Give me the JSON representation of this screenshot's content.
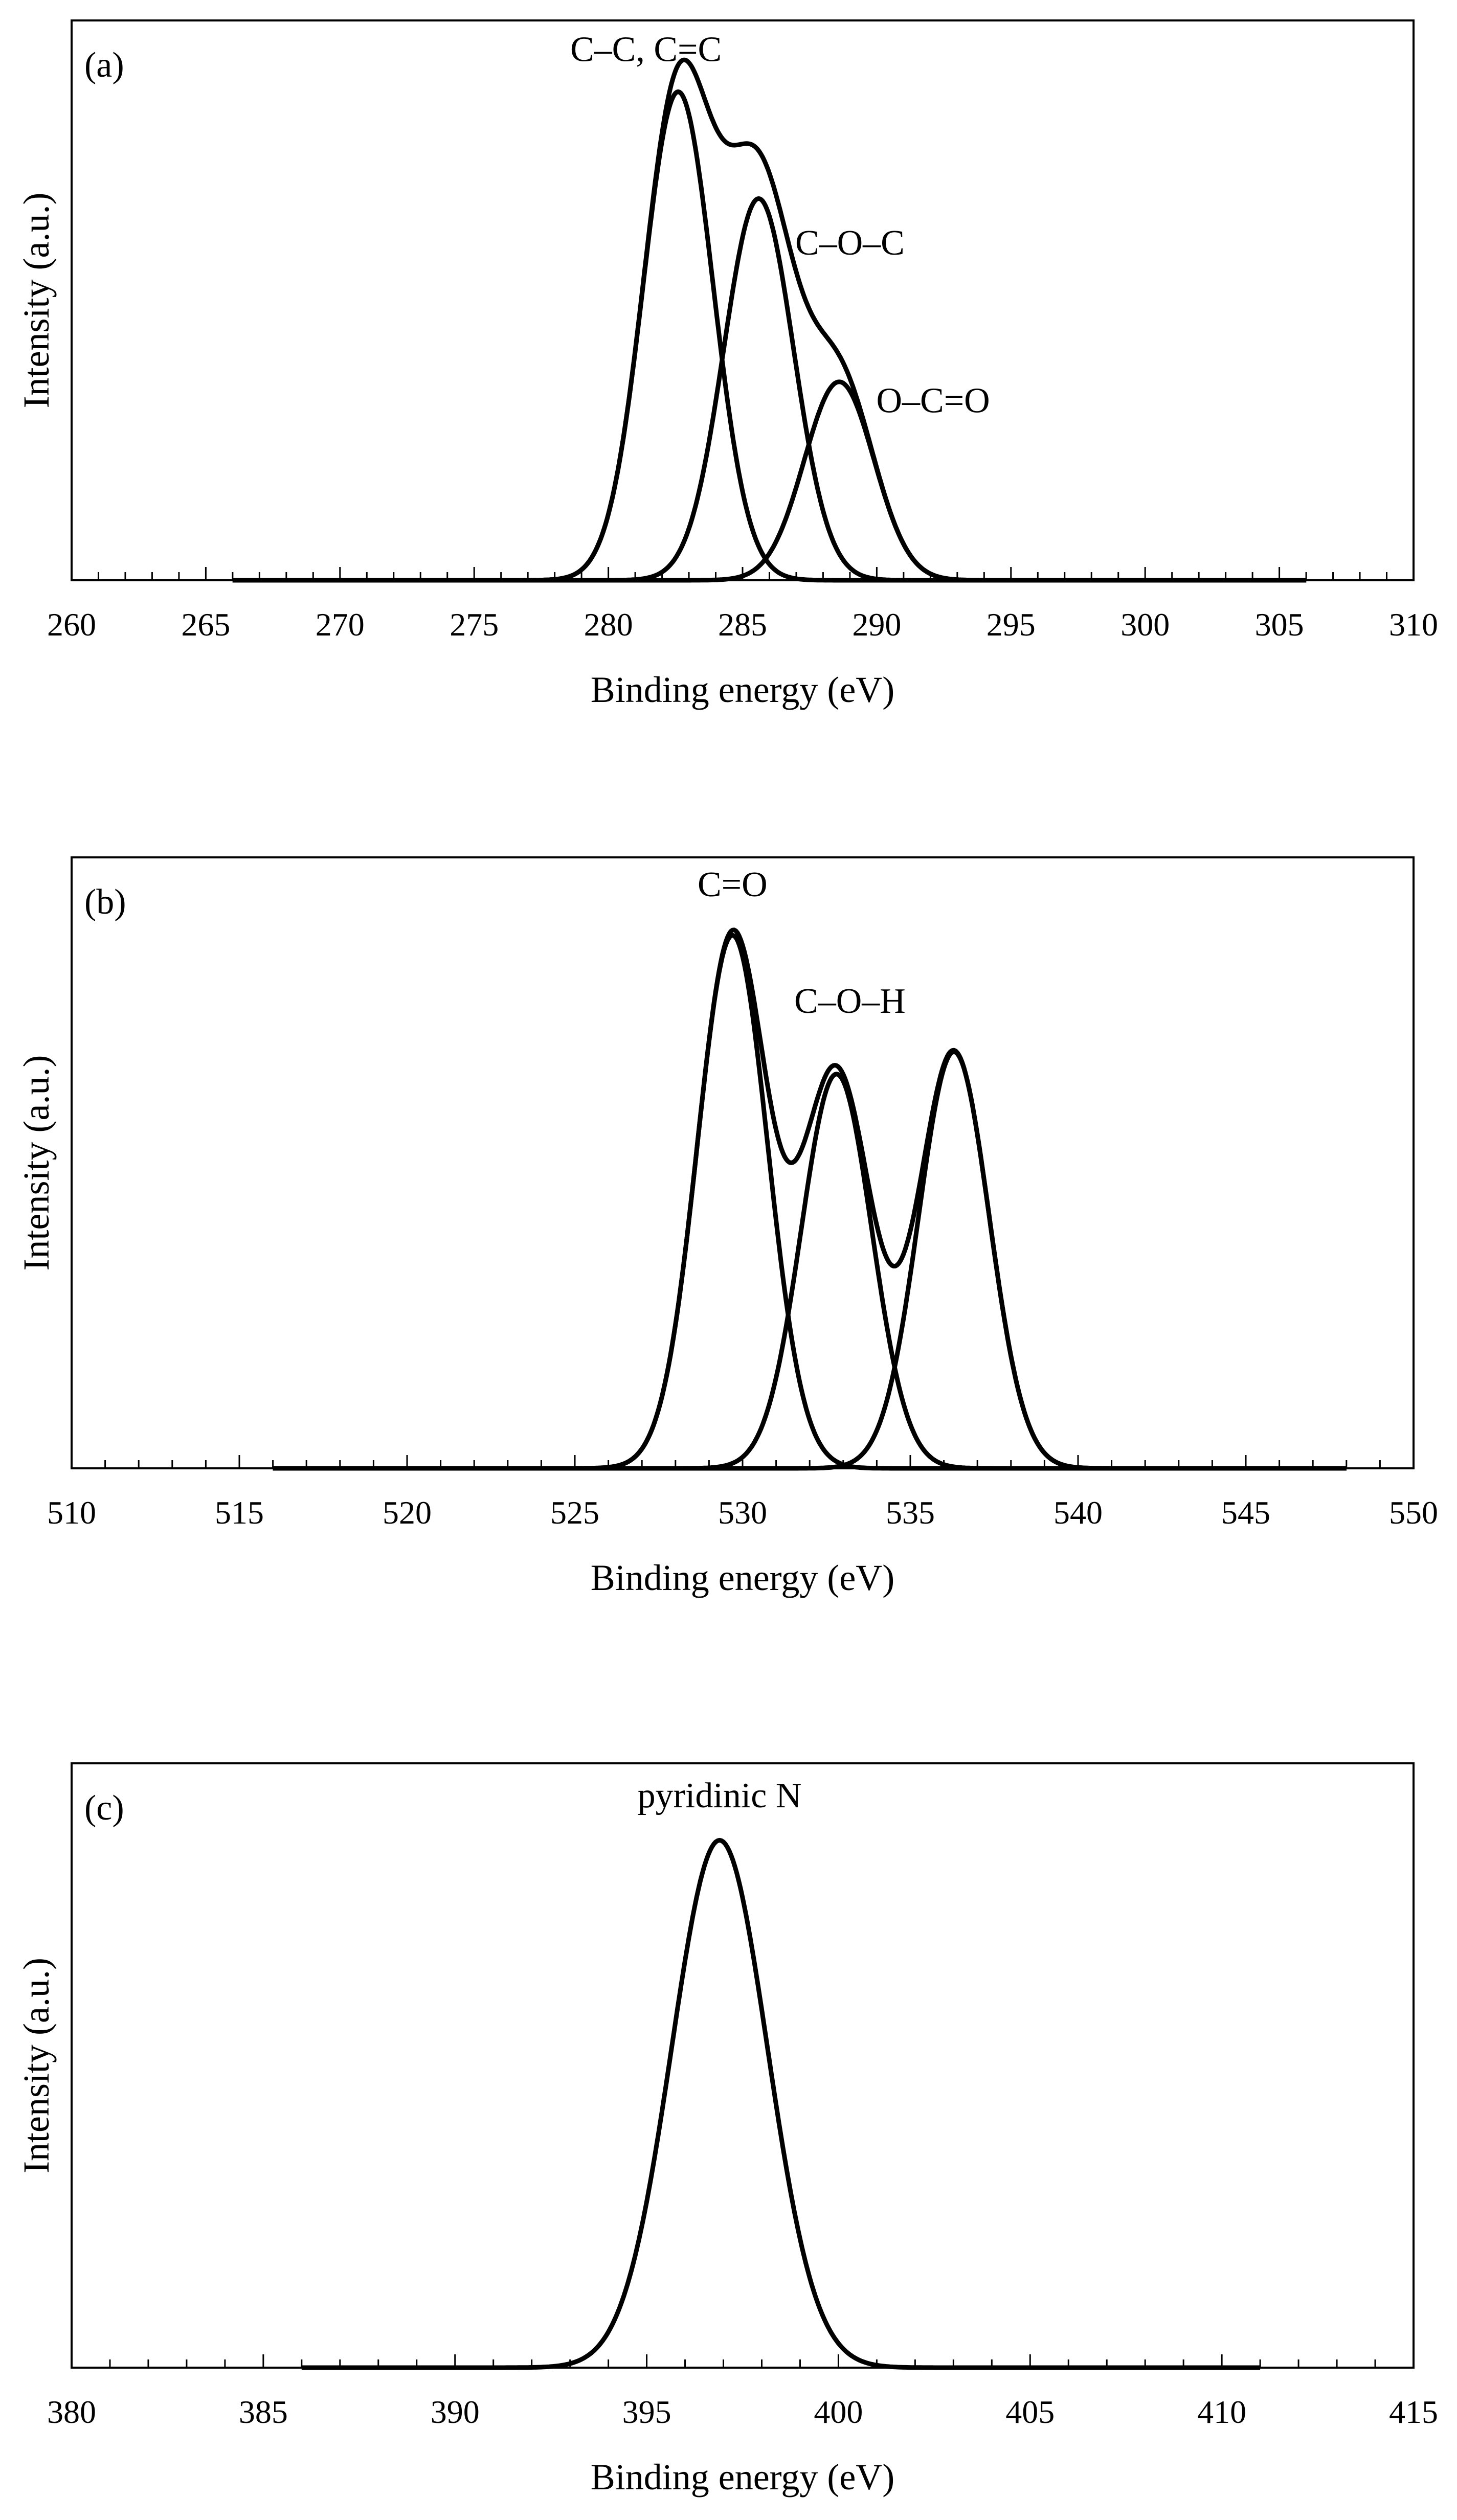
{
  "chart_data": [
    {
      "type": "line",
      "panel": "(a)",
      "xlabel": "Binding energy (eV)",
      "ylabel": "Intensity (a.u.)",
      "xlim": [
        260,
        310
      ],
      "ylim": [
        0,
        1.1
      ],
      "x_ticks": [
        260,
        265,
        270,
        275,
        280,
        285,
        290,
        295,
        300,
        305,
        310
      ],
      "curve_range": [
        266,
        306
      ],
      "series": [
        {
          "name": "C–C, C=C",
          "center": 282.6,
          "height": 0.96,
          "sigma": 1.3
        },
        {
          "name": "C–O–C",
          "center": 285.6,
          "height": 0.75,
          "sigma": 1.3
        },
        {
          "name": "O–C=O",
          "center": 288.6,
          "height": 0.39,
          "sigma": 1.3
        }
      ],
      "envelope": {
        "name": "envelope"
      },
      "annotations": [
        {
          "text": "C–C, C=C",
          "x": 281.4,
          "y": 1.02
        },
        {
          "text": "C–O–C",
          "x": 289.0,
          "y": 0.64
        },
        {
          "text": "O–C=O",
          "x": 292.1,
          "y": 0.33
        }
      ]
    },
    {
      "type": "line",
      "panel": "(b)",
      "xlabel": "Binding energy (eV)",
      "ylabel": "Intensity (a.u.)",
      "xlim": [
        510,
        550
      ],
      "ylim": [
        0,
        1.1
      ],
      "x_ticks": [
        510,
        515,
        520,
        525,
        530,
        535,
        540,
        545,
        550
      ],
      "curve_range": [
        516,
        548
      ],
      "series": [
        {
          "name": "C=O",
          "center": 529.7,
          "height": 0.96,
          "sigma": 1.05
        },
        {
          "name": "C–O–H",
          "center": 532.8,
          "height": 0.71,
          "sigma": 1.05
        },
        {
          "name": "",
          "center": 536.3,
          "height": 0.75,
          "sigma": 1.05
        }
      ],
      "envelope": {
        "name": "envelope"
      },
      "annotations": [
        {
          "text": "C=O",
          "x": 529.7,
          "y": 1.03
        },
        {
          "text": "C–O–H",
          "x": 533.2,
          "y": 0.82
        }
      ]
    },
    {
      "type": "line",
      "panel": "(c)",
      "xlabel": "Binding energy (eV)",
      "ylabel": "Intensity (a.u.)",
      "xlim": [
        380,
        415
      ],
      "ylim": [
        0,
        1.1
      ],
      "x_ticks": [
        380,
        385,
        390,
        395,
        400,
        405,
        410,
        415
      ],
      "curve_range": [
        386,
        411
      ],
      "series": [
        {
          "name": "pyridinic N",
          "center": 396.9,
          "height": 0.96,
          "sigma": 1.25
        }
      ],
      "envelope": null,
      "annotations": [
        {
          "text": "pyridinic N",
          "x": 396.9,
          "y": 1.02
        }
      ]
    }
  ]
}
